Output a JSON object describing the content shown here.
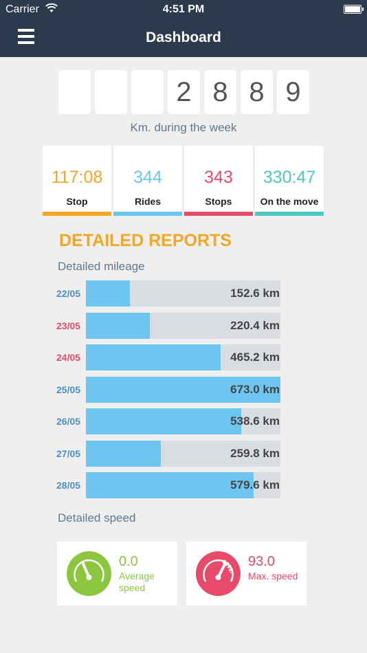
{
  "status_bar": {
    "carrier": "Carrier",
    "time": "4:51 PM"
  },
  "navbar": {
    "title": "Dashboard",
    "menu_icon": "hamburger-menu-icon"
  },
  "odometer": {
    "digits": [
      "",
      "",
      "",
      "2",
      "8",
      "8",
      "9"
    ],
    "caption": "Km. during the week"
  },
  "stats": [
    {
      "value": "117:08",
      "label": "Stop",
      "color": "#f5a623"
    },
    {
      "value": "344",
      "label": "Rides",
      "color": "#6cc6f0"
    },
    {
      "value": "343",
      "label": "Stops",
      "color": "#e84a6a"
    },
    {
      "value": "330:47",
      "label": "On the move",
      "color": "#4cc9c0"
    }
  ],
  "reports": {
    "title": "DETAILED REPORTS",
    "mileage_title": "Detailed mileage",
    "speed_title": "Detailed speed",
    "max_km": 673.0,
    "mileage": [
      {
        "date": "22/05",
        "km": 152.6,
        "label": "152.6 km",
        "date_color": "#4a90c2"
      },
      {
        "date": "23/05",
        "km": 220.4,
        "label": "220.4 km",
        "date_color": "#e84a6a"
      },
      {
        "date": "24/05",
        "km": 465.2,
        "label": "465.2 km",
        "date_color": "#e84a6a"
      },
      {
        "date": "25/05",
        "km": 673.0,
        "label": "673.0 km",
        "date_color": "#4a90c2"
      },
      {
        "date": "26/05",
        "km": 538.6,
        "label": "538.6 km",
        "date_color": "#4a90c2"
      },
      {
        "date": "27/05",
        "km": 259.8,
        "label": "259.8 km",
        "date_color": "#4a90c2"
      },
      {
        "date": "28/05",
        "km": 579.6,
        "label": "579.6 km",
        "date_color": "#4a90c2"
      }
    ]
  },
  "speed": [
    {
      "value": "0.0",
      "label": "Average speed",
      "color": "#8cc63f",
      "icon": "speedometer-low-icon"
    },
    {
      "value": "93.0",
      "label": "Max. speed",
      "color": "#e84a6a",
      "icon": "speedometer-high-icon"
    }
  ]
}
